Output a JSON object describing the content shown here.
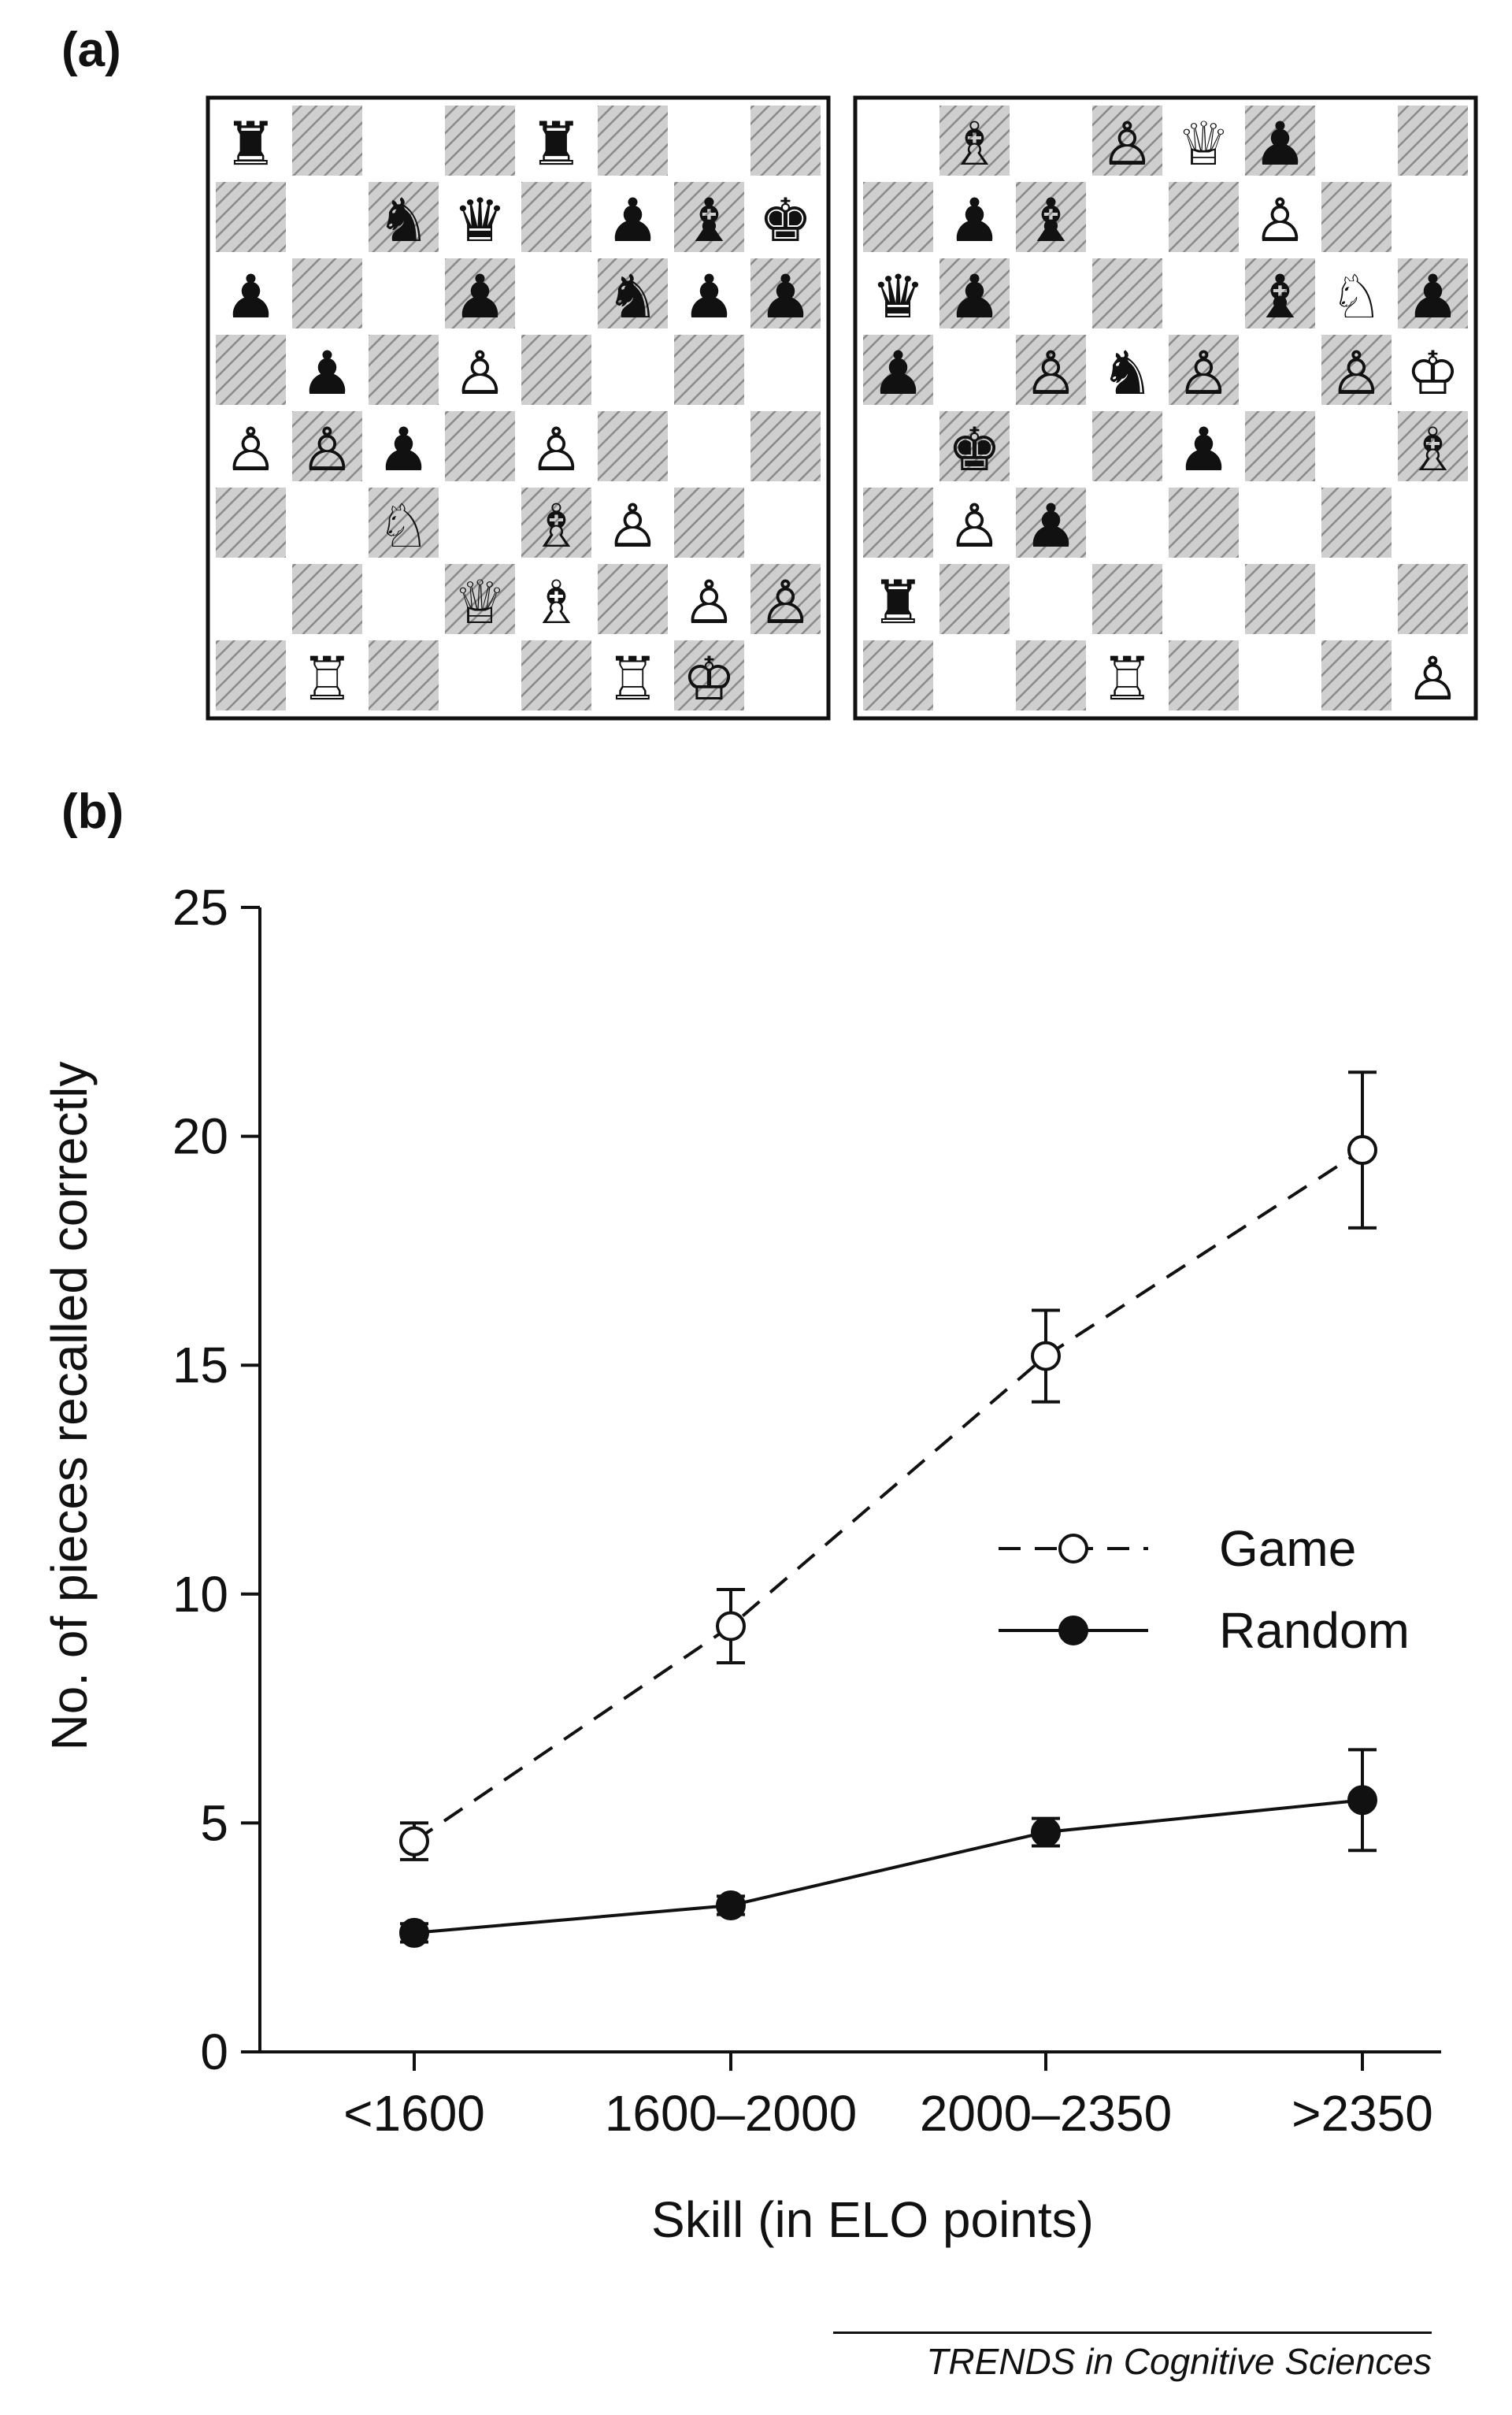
{
  "panels": {
    "a_label": "(a)",
    "b_label": "(b)"
  },
  "boards": [
    {
      "name": "game-position",
      "rows": [
        [
          "r",
          "",
          "",
          "",
          "r",
          "",
          "",
          ""
        ],
        [
          "",
          "",
          "n",
          "q",
          "",
          "p",
          "b",
          "k"
        ],
        [
          "p",
          "",
          "",
          "p",
          "",
          "n",
          "p",
          "p"
        ],
        [
          "",
          "p",
          "",
          "P",
          "",
          "",
          "",
          ""
        ],
        [
          "P",
          "P",
          "p",
          "",
          "P",
          "",
          "",
          ""
        ],
        [
          "",
          "",
          "N",
          "",
          "B",
          "P",
          "",
          ""
        ],
        [
          "",
          "",
          "",
          "Q",
          "B",
          "",
          "P",
          "P"
        ],
        [
          "",
          "R",
          "",
          "",
          "",
          "R",
          "K",
          ""
        ]
      ]
    },
    {
      "name": "random-position",
      "rows": [
        [
          "",
          "B",
          "",
          "P",
          "Q",
          "p",
          "",
          ""
        ],
        [
          "",
          "p",
          "b",
          "",
          "",
          "P",
          "",
          ""
        ],
        [
          "q",
          "p",
          "",
          "",
          "",
          "b",
          "N",
          "p"
        ],
        [
          "p",
          "",
          "P",
          "n",
          "P",
          "",
          "P",
          "K"
        ],
        [
          "",
          "k",
          "",
          "",
          "p",
          "",
          "",
          "B"
        ],
        [
          "",
          "P",
          "p",
          "",
          "",
          "",
          "",
          ""
        ],
        [
          "r",
          "",
          "",
          "",
          "",
          "",
          "",
          ""
        ],
        [
          "",
          "",
          "",
          "R",
          "",
          "",
          "",
          "P"
        ]
      ]
    }
  ],
  "chart_data": {
    "type": "line",
    "categories": [
      "<1600",
      "1600–2000",
      "2000–2350",
      ">2350"
    ],
    "series": [
      {
        "name": "Game",
        "values": [
          4.6,
          9.3,
          15.2,
          19.7
        ],
        "errors": [
          0.4,
          0.8,
          1.0,
          1.7
        ],
        "marker": "open-circle",
        "line": "dashed"
      },
      {
        "name": "Random",
        "values": [
          2.6,
          3.2,
          4.8,
          5.5
        ],
        "errors": [
          0.2,
          0.2,
          0.3,
          1.1
        ],
        "marker": "filled-circle",
        "line": "solid"
      }
    ],
    "ylabel": "No. of pieces recalled correctly",
    "xlabel": "Skill (in ELO points)",
    "ylim": [
      0,
      25
    ],
    "yticks": [
      0,
      5,
      10,
      15,
      20,
      25
    ],
    "legend_position": "right"
  },
  "footer": "TRENDS in Cognitive Sciences"
}
